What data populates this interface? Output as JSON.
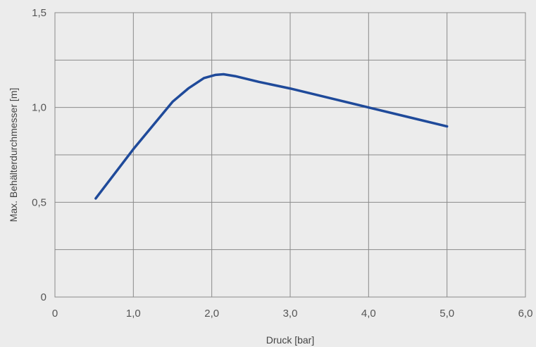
{
  "chart_data": {
    "type": "line",
    "title": "",
    "xlabel": "Druck [bar]",
    "ylabel": "Max. Behälterdurchmesser [m]",
    "xlim": [
      0,
      6
    ],
    "ylim": [
      0,
      1.5
    ],
    "x_ticks": [
      0,
      1,
      2,
      3,
      4,
      5,
      6
    ],
    "x_tick_labels": [
      "0",
      "1,0",
      "2,0",
      "3,0",
      "4,0",
      "5,0",
      "6,0"
    ],
    "y_ticks": [
      0,
      0.5,
      1.0,
      1.5
    ],
    "y_tick_labels": [
      "0",
      "0,5",
      "1,0",
      "1,5"
    ],
    "y_grid_minor": [
      0.25,
      0.75,
      1.25
    ],
    "grid": true,
    "series": [
      {
        "color": "#1f4a9a",
        "x": [
          0.52,
          1.0,
          1.5,
          1.7,
          1.9,
          2.05,
          2.15,
          2.3,
          2.6,
          3.0,
          3.5,
          4.0,
          4.5,
          5.0
        ],
        "y": [
          0.52,
          0.78,
          1.03,
          1.1,
          1.155,
          1.172,
          1.175,
          1.165,
          1.135,
          1.1,
          1.05,
          1.0,
          0.95,
          0.9
        ]
      }
    ]
  }
}
